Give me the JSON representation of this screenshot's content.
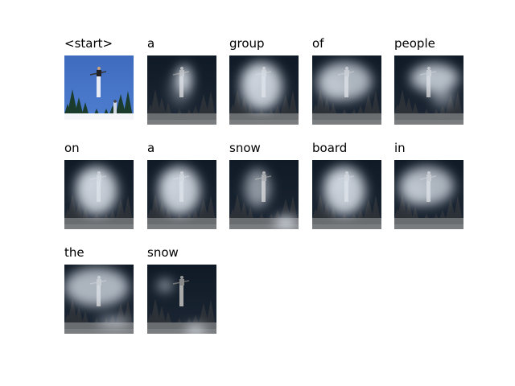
{
  "words": [
    "<start>",
    "a",
    "group",
    "of",
    "people",
    "on",
    "a",
    "snow",
    "board",
    "in",
    "the",
    "snow"
  ],
  "attention_focus": [
    "original",
    "upper-center",
    "center",
    "wide-center",
    "upper-right",
    "center",
    "center",
    "center-left-and-lower-right",
    "center",
    "wide-center",
    "wide-upper",
    "left-and-bottom"
  ]
}
